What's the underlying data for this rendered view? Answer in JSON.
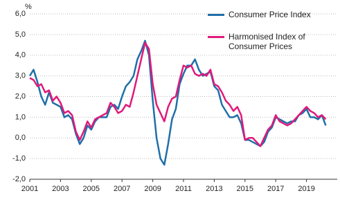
{
  "chart_data": {
    "type": "line",
    "y_label": "%",
    "x": [
      2001,
      2001.25,
      2001.5,
      2001.75,
      2002,
      2002.25,
      2002.5,
      2002.75,
      2003,
      2003.25,
      2003.5,
      2003.75,
      2004,
      2004.25,
      2004.5,
      2004.75,
      2005,
      2005.25,
      2005.5,
      2005.75,
      2006,
      2006.25,
      2006.5,
      2006.75,
      2007,
      2007.25,
      2007.5,
      2007.75,
      2008,
      2008.25,
      2008.5,
      2008.75,
      2009,
      2009.25,
      2009.5,
      2009.75,
      2010,
      2010.25,
      2010.5,
      2010.75,
      2011,
      2011.25,
      2011.5,
      2011.75,
      2012,
      2012.25,
      2012.5,
      2012.75,
      2013,
      2013.25,
      2013.5,
      2013.75,
      2014,
      2014.25,
      2014.5,
      2014.75,
      2015,
      2015.25,
      2015.5,
      2015.75,
      2016,
      2016.25,
      2016.5,
      2016.75,
      2017,
      2017.25,
      2017.5,
      2017.75,
      2018,
      2018.25,
      2018.5,
      2018.75,
      2019,
      2019.25,
      2019.5,
      2019.75,
      2020,
      2020.25
    ],
    "series": [
      {
        "name": "Consumer Price Index",
        "color": "#1f6fa8",
        "values": [
          3.0,
          3.3,
          2.7,
          2.0,
          1.6,
          2.2,
          1.7,
          1.6,
          1.5,
          1.0,
          1.1,
          0.9,
          0.2,
          -0.3,
          0.0,
          0.6,
          0.4,
          0.8,
          1.0,
          1.0,
          1.0,
          1.5,
          1.6,
          1.4,
          2.0,
          2.5,
          2.7,
          3.0,
          3.8,
          4.2,
          4.7,
          4.0,
          1.8,
          0.0,
          -1.0,
          -1.3,
          -0.3,
          0.9,
          1.4,
          2.6,
          3.1,
          3.5,
          3.5,
          3.8,
          3.3,
          3.0,
          3.1,
          3.2,
          2.5,
          2.3,
          1.6,
          1.3,
          1.0,
          1.0,
          1.1,
          0.7,
          -0.1,
          -0.1,
          -0.2,
          -0.3,
          -0.4,
          -0.2,
          0.3,
          0.5,
          1.0,
          0.9,
          0.8,
          0.7,
          0.8,
          0.8,
          1.1,
          1.2,
          1.4,
          1.0,
          1.0,
          0.9,
          1.1,
          0.6
        ]
      },
      {
        "name": "Harmonised Index of Consumer Prices",
        "color": "#e0197b",
        "values": [
          2.9,
          2.8,
          2.5,
          2.6,
          2.2,
          2.3,
          1.8,
          2.0,
          1.7,
          1.2,
          1.3,
          1.1,
          0.3,
          -0.1,
          0.3,
          0.8,
          0.5,
          0.9,
          1.0,
          1.1,
          1.2,
          1.7,
          1.5,
          1.2,
          1.3,
          1.6,
          1.5,
          2.2,
          3.0,
          3.8,
          4.6,
          4.3,
          2.6,
          1.6,
          1.2,
          0.8,
          1.5,
          1.9,
          2.0,
          2.8,
          3.5,
          3.4,
          3.5,
          3.1,
          3.0,
          3.1,
          3.0,
          3.3,
          2.6,
          2.5,
          2.2,
          1.8,
          1.6,
          1.3,
          1.5,
          1.1,
          -0.1,
          0.0,
          0.0,
          -0.2,
          -0.4,
          0.0,
          0.4,
          0.6,
          1.1,
          0.8,
          0.7,
          0.6,
          0.7,
          0.9,
          1.1,
          1.3,
          1.5,
          1.3,
          1.2,
          1.0,
          1.1,
          0.9
        ]
      }
    ],
    "xlim": [
      2001,
      2021
    ],
    "xticks": [
      2001,
      2003,
      2005,
      2007,
      2009,
      2011,
      2013,
      2015,
      2017,
      2019
    ],
    "ylim": [
      -2,
      6
    ],
    "yticks": [
      {
        "value": -2,
        "label": "-2,0"
      },
      {
        "value": -1,
        "label": "-1,0"
      },
      {
        "value": 0,
        "label": "0,0"
      },
      {
        "value": 1,
        "label": "1,0"
      },
      {
        "value": 2,
        "label": "2,0"
      },
      {
        "value": 3,
        "label": "3,0"
      },
      {
        "value": 4,
        "label": "4,0"
      },
      {
        "value": 5,
        "label": "5,0"
      },
      {
        "value": 6,
        "label": "6,0"
      }
    ],
    "grid": true,
    "legend": "top-right"
  }
}
